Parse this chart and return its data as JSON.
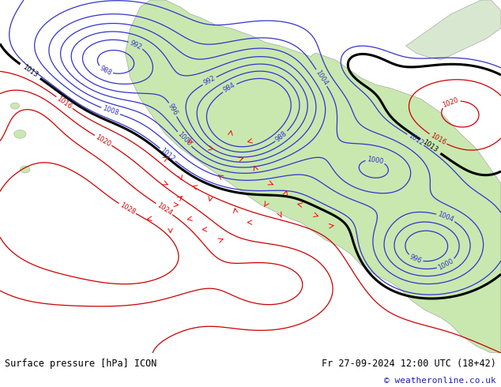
{
  "title_left": "Surface pressure [hPa] ICON",
  "title_right": "Fr 27-09-2024 12:00 UTC (18+42)",
  "copyright": "© weatheronline.co.uk",
  "bg_color": "#ffffff",
  "ocean_color": "#ffffff",
  "land_color": "#c8e8b0",
  "fig_width": 6.34,
  "fig_height": 4.9,
  "dpi": 100,
  "bottom_bar_height": 0.088,
  "bottom_bg": "#f2f2f2",
  "title_fontsize": 8.5,
  "copyright_fontsize": 8,
  "isobar_blue": "#3333cc",
  "isobar_red": "#cc0000",
  "isobar_black": "#000000",
  "label_fontsize": 6
}
